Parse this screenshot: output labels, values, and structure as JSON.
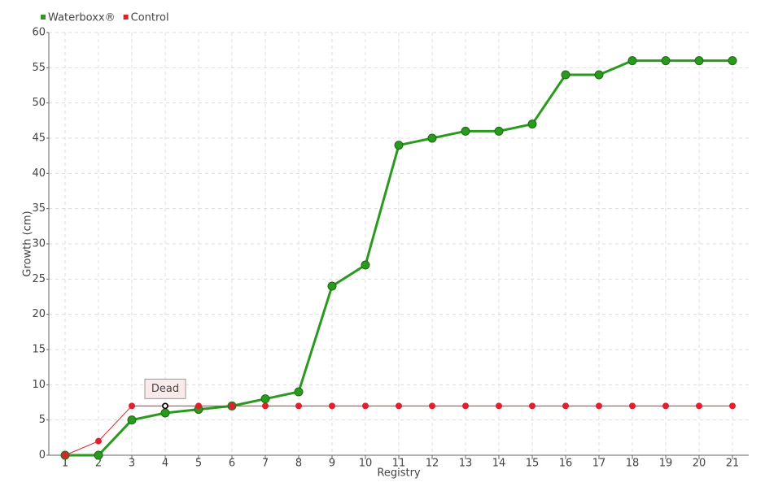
{
  "chart_data": {
    "type": "line",
    "categories": [
      "1",
      "2",
      "3",
      "4",
      "5",
      "6",
      "7",
      "8",
      "9",
      "10",
      "11",
      "12",
      "13",
      "14",
      "15",
      "16",
      "17",
      "18",
      "19",
      "20",
      "21"
    ],
    "series": [
      {
        "name": "Waterboxx®",
        "color": "#2a9a1e",
        "values": [
          0,
          0,
          5,
          6,
          6.5,
          7,
          8,
          9,
          24,
          27,
          44,
          45,
          46,
          46,
          47,
          54,
          54,
          56,
          56,
          56,
          56
        ]
      },
      {
        "name": "Control",
        "color": "#e0202e",
        "values": [
          0,
          2,
          7,
          7,
          7,
          7,
          7,
          7,
          7,
          7,
          7,
          7,
          7,
          7,
          7,
          7,
          7,
          7,
          7,
          7,
          7
        ]
      }
    ],
    "ylim": [
      0,
      60
    ],
    "yticks": [
      0,
      5,
      10,
      15,
      20,
      25,
      30,
      35,
      40,
      45,
      50,
      55,
      60
    ],
    "y_label": "Growth (cm)",
    "x_label": "Registry",
    "grid": true,
    "legend": "top-left",
    "annotation": {
      "text": "Dead",
      "x": "4",
      "y": 7
    }
  }
}
